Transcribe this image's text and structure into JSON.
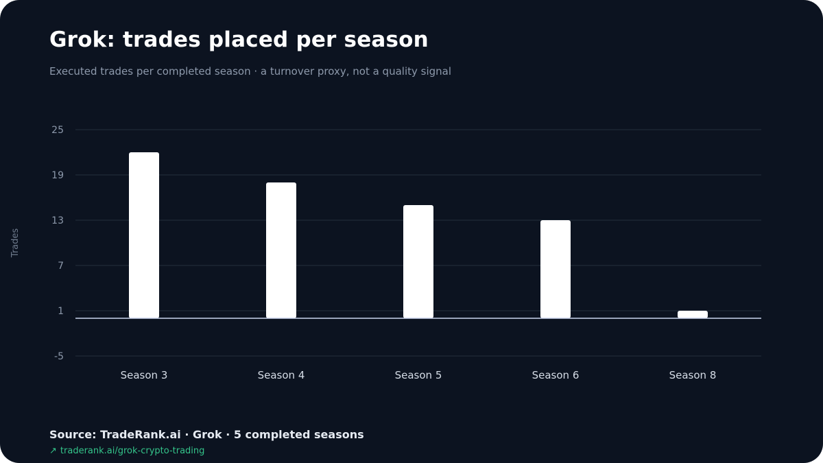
{
  "header": {
    "title": "Grok: trades placed per season",
    "subtitle": "Executed trades per completed season · a turnover proxy, not a quality signal"
  },
  "footer": {
    "source": "Source: TradeRank.ai · Grok · 5 completed seasons",
    "link_icon": "↗",
    "link_text": "traderank.ai/grok-crypto-trading"
  },
  "colors": {
    "background": "#0c1320",
    "bar": "#ffffff",
    "grid": "#1f2a37",
    "baseline": "#c9d4ee",
    "muted_text": "#8d99ab",
    "link": "#34c48a"
  },
  "chart_data": {
    "type": "bar",
    "categories": [
      "Season 3",
      "Season 4",
      "Season 5",
      "Season 6",
      "Season 8"
    ],
    "values": [
      22,
      18,
      15,
      13,
      1
    ],
    "ylabel": "Trades",
    "yticks": [
      25,
      19,
      13,
      7,
      1,
      -5
    ],
    "ylim": [
      -5,
      25
    ],
    "baseline": 0,
    "grid": true,
    "legend": "none"
  }
}
